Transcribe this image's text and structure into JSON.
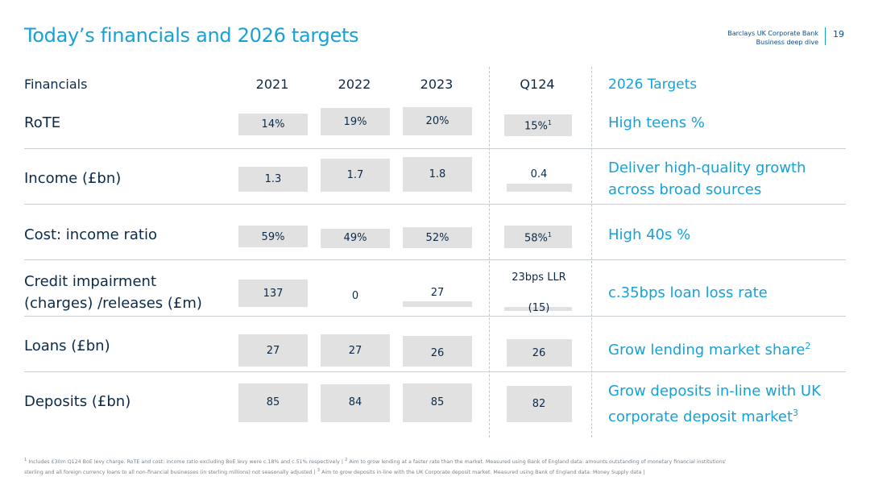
{
  "header": {
    "title": "Today’s financials and 2026 targets",
    "brand_line1": "Barclays UK Corporate Bank",
    "brand_line2": "Business deep dive",
    "page_number": "19"
  },
  "columns": {
    "financials": "Financials",
    "y2021": "2021",
    "y2022": "2022",
    "y2023": "2023",
    "q124": "Q124",
    "targets": "2026 Targets"
  },
  "rows": {
    "rote": {
      "label": "RoTE",
      "v2021": "14%",
      "v2022": "19%",
      "v2023": "20%",
      "vq124": "15%",
      "vq124_sup": "1",
      "target": "High teens %"
    },
    "income": {
      "label": "Income (£bn)",
      "v2021": "1.3",
      "v2022": "1.7",
      "v2023": "1.8",
      "vq124": "0.4",
      "target_line1": "Deliver high-quality growth",
      "target_line2": "across broad sources"
    },
    "cost": {
      "label": "Cost: income ratio",
      "v2021": "59%",
      "v2022": "49%",
      "v2023": "52%",
      "vq124": "58%",
      "vq124_sup": "1",
      "target": "High 40s %"
    },
    "credit": {
      "label_line1": "Credit impairment",
      "label_line2": "(charges) /releases (£m)",
      "v2021": "137",
      "v2022": "0",
      "v2023": "27",
      "vq124_note": "23bps LLR",
      "vq124": "(15)",
      "target": "c.35bps loan loss rate"
    },
    "loans": {
      "label": "Loans (£bn)",
      "v2021": "27",
      "v2022": "27",
      "v2023": "26",
      "vq124": "26",
      "target": "Grow lending market share",
      "target_sup": "2"
    },
    "deposits": {
      "label": "Deposits (£bn)",
      "v2021": "85",
      "v2022": "84",
      "v2023": "85",
      "vq124": "82",
      "target_line1": "Grow deposits in-line with UK",
      "target_line2": "corporate deposit market",
      "target_sup": "3"
    }
  },
  "footnote": {
    "sup1": "1",
    "line1": " Includes £30m Q124 BoE levy charge. RoTE and cost: income ratio excluding BoE levy were c.18% and c.51% respectively | ",
    "sup2": "2",
    "line1b": " Aim to grow lending at a faster rate than the market. Measured using Bank of England data: amounts outstanding of monetary financial institutions'",
    "line2": "sterling and all foreign currency loans to all non-financial businesses (in sterling millions) not seasonally adjusted | ",
    "sup3": "3",
    "line2b": " Aim to grow deposits in-line with the UK Corporate deposit market. Measured using Bank of England data: Money Supply data |"
  },
  "colors": {
    "accent": "#17a1d6",
    "text": "#0b2a4a",
    "bar": "#e1e1e1",
    "divider": "#c9ced2"
  }
}
